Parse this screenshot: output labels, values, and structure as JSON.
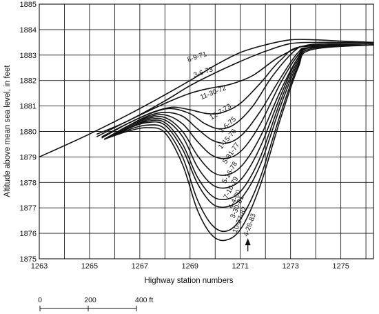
{
  "chart_data": {
    "type": "line",
    "title": "",
    "xlabel": "Highway station numbers",
    "ylabel": "Altitude above mean sea level, in feet",
    "xlim": [
      1263,
      1276.3
    ],
    "ylim": [
      1875,
      1885
    ],
    "x_ticks": [
      1263,
      1265,
      1267,
      1269,
      1271,
      1273,
      1275
    ],
    "y_ticks": [
      1875,
      1876,
      1877,
      1878,
      1879,
      1880,
      1881,
      1882,
      1883,
      1884,
      1885
    ],
    "x_gridlines": [
      1264,
      1265,
      1266,
      1267,
      1268,
      1269,
      1270,
      1271,
      1272,
      1273,
      1274,
      1275,
      1276
    ],
    "y_gridlines": [
      1876,
      1877,
      1878,
      1879,
      1880,
      1881,
      1882,
      1883,
      1884
    ],
    "grid": true,
    "annotation": {
      "symbol": "↑",
      "x": 1271.3,
      "y": 1875.4
    },
    "scale_bar": {
      "labels": [
        "0",
        "200",
        "400 ft"
      ]
    },
    "series": [
      {
        "name": "8-9-71",
        "x": [
          1263.0,
          1265.0,
          1267.0,
          1269.0,
          1270.0,
          1271.0,
          1272.0,
          1273.0,
          1274.0,
          1275.0,
          1276.3
        ],
        "y": [
          1879.0,
          1879.9,
          1880.9,
          1882.0,
          1882.6,
          1883.1,
          1883.4,
          1883.6,
          1883.6,
          1883.55,
          1883.5
        ]
      },
      {
        "name": "3-6-73",
        "x": [
          1265.3,
          1266.5,
          1268.0,
          1269.0,
          1270.0,
          1271.0,
          1272.0,
          1273.0,
          1274.0,
          1275.0,
          1276.3
        ],
        "y": [
          1879.9,
          1880.4,
          1881.2,
          1881.8,
          1882.3,
          1882.75,
          1883.15,
          1883.45,
          1883.5,
          1883.5,
          1883.5
        ]
      },
      {
        "name": "11-30-72",
        "x": [
          1265.3,
          1266.5,
          1268.0,
          1269.0,
          1269.8,
          1270.6,
          1271.5,
          1272.5,
          1273.5,
          1274.5,
          1276.3
        ],
        "y": [
          1879.8,
          1880.4,
          1881.1,
          1881.5,
          1881.7,
          1881.85,
          1882.2,
          1882.9,
          1883.35,
          1883.45,
          1883.45
        ]
      },
      {
        "name": "12-7-73",
        "x": [
          1265.5,
          1266.5,
          1267.5,
          1268.3,
          1269.0,
          1269.7,
          1270.3,
          1271.0,
          1271.8,
          1272.6,
          1273.5,
          1276.3
        ],
        "y": [
          1879.8,
          1880.3,
          1880.75,
          1880.95,
          1880.85,
          1880.7,
          1880.75,
          1881.1,
          1881.9,
          1882.8,
          1883.35,
          1883.4
        ]
      },
      {
        "name": "1-6-75",
        "x": [
          1265.5,
          1266.5,
          1267.4,
          1268.2,
          1269.0,
          1269.6,
          1270.2,
          1270.8,
          1271.5,
          1272.3,
          1273.2,
          1273.8,
          1276.3
        ],
        "y": [
          1879.75,
          1880.3,
          1880.7,
          1880.9,
          1880.7,
          1880.3,
          1880.1,
          1880.3,
          1881.0,
          1882.2,
          1883.2,
          1883.35,
          1883.4
        ]
      },
      {
        "name": "1-15-76",
        "x": [
          1265.6,
          1266.5,
          1267.3,
          1268.0,
          1268.7,
          1269.3,
          1269.9,
          1270.5,
          1271.1,
          1271.8,
          1272.6,
          1273.3,
          1273.8,
          1276.3
        ],
        "y": [
          1879.7,
          1880.2,
          1880.6,
          1880.75,
          1880.6,
          1880.1,
          1879.65,
          1879.55,
          1879.9,
          1880.8,
          1882.1,
          1883.1,
          1883.3,
          1883.4
        ]
      },
      {
        "name": "5-31-77",
        "x": [
          1265.6,
          1266.5,
          1267.3,
          1268.0,
          1268.7,
          1269.3,
          1269.9,
          1270.5,
          1271.1,
          1271.8,
          1272.6,
          1273.3,
          1273.8,
          1276.3
        ],
        "y": [
          1879.7,
          1880.2,
          1880.55,
          1880.65,
          1880.3,
          1879.6,
          1879.05,
          1878.95,
          1879.3,
          1880.3,
          1881.9,
          1883.0,
          1883.3,
          1883.4
        ]
      },
      {
        "name": "5-16-78",
        "x": [
          1265.6,
          1266.5,
          1267.3,
          1268.0,
          1268.7,
          1269.3,
          1269.9,
          1270.5,
          1271.1,
          1271.8,
          1272.6,
          1273.3,
          1273.8,
          1276.3
        ],
        "y": [
          1879.7,
          1880.15,
          1880.5,
          1880.55,
          1880.0,
          1879.05,
          1878.4,
          1878.3,
          1878.7,
          1879.8,
          1881.6,
          1882.9,
          1883.3,
          1883.4
        ]
      },
      {
        "name": "7-10-79",
        "x": [
          1265.6,
          1266.5,
          1267.3,
          1268.0,
          1268.7,
          1269.3,
          1269.9,
          1270.5,
          1271.1,
          1271.8,
          1272.6,
          1273.3,
          1273.8,
          1276.3
        ],
        "y": [
          1879.7,
          1880.1,
          1880.45,
          1880.45,
          1879.8,
          1878.6,
          1877.9,
          1877.8,
          1878.2,
          1879.4,
          1881.4,
          1882.9,
          1883.3,
          1883.4
        ]
      },
      {
        "name": "4-4-80",
        "x": [
          1265.6,
          1266.5,
          1267.3,
          1268.0,
          1268.7,
          1269.3,
          1269.9,
          1270.5,
          1271.1,
          1271.8,
          1272.6,
          1273.3,
          1273.8,
          1276.3
        ],
        "y": [
          1879.7,
          1880.1,
          1880.4,
          1880.35,
          1879.5,
          1878.2,
          1877.45,
          1877.35,
          1877.75,
          1879.0,
          1881.2,
          1882.8,
          1883.3,
          1883.4
        ]
      },
      {
        "name": "3-30-81",
        "x": [
          1265.6,
          1266.5,
          1267.3,
          1268.0,
          1268.7,
          1269.3,
          1269.9,
          1270.5,
          1271.1,
          1271.8,
          1272.6,
          1273.3,
          1273.8,
          1276.3
        ],
        "y": [
          1879.7,
          1880.1,
          1880.35,
          1880.25,
          1879.3,
          1877.95,
          1877.15,
          1877.05,
          1877.45,
          1878.7,
          1881.0,
          1882.7,
          1883.3,
          1883.4
        ]
      },
      {
        "name": "10-27-82",
        "x": [
          1265.6,
          1266.5,
          1267.3,
          1268.0,
          1268.7,
          1269.3,
          1269.9,
          1270.5,
          1271.1,
          1271.8,
          1272.6,
          1273.3,
          1273.8,
          1276.3
        ],
        "y": [
          1879.7,
          1880.05,
          1880.25,
          1880.1,
          1879.0,
          1877.3,
          1876.3,
          1876.1,
          1876.7,
          1878.2,
          1880.7,
          1882.6,
          1883.25,
          1883.4
        ]
      },
      {
        "name": "4-26-83",
        "x": [
          1265.6,
          1266.5,
          1267.3,
          1268.0,
          1268.7,
          1269.3,
          1269.9,
          1270.5,
          1271.1,
          1271.8,
          1272.6,
          1273.3,
          1273.8,
          1276.3
        ],
        "y": [
          1879.7,
          1880.0,
          1880.15,
          1879.95,
          1878.7,
          1876.9,
          1875.9,
          1875.75,
          1876.3,
          1877.9,
          1880.5,
          1882.5,
          1883.2,
          1883.4
        ]
      }
    ],
    "curve_labels": [
      {
        "text": "8-9-71",
        "x": 1269.3,
        "y": 1882.85,
        "angle": -18
      },
      {
        "text": "3-6-73",
        "x": 1269.55,
        "y": 1882.25,
        "angle": -18
      },
      {
        "text": "11-30-72",
        "x": 1269.95,
        "y": 1881.45,
        "angle": -22
      },
      {
        "text": "12-7-73",
        "x": 1270.25,
        "y": 1880.7,
        "angle": -32
      },
      {
        "text": "1-6-75",
        "x": 1270.55,
        "y": 1880.2,
        "angle": -42
      },
      {
        "text": "1-15-76",
        "x": 1270.55,
        "y": 1879.65,
        "angle": -50
      },
      {
        "text": "5-31-77",
        "x": 1270.7,
        "y": 1879.1,
        "angle": -55
      },
      {
        "text": "5-16-78",
        "x": 1270.65,
        "y": 1878.35,
        "angle": -60
      },
      {
        "text": "7-10-79",
        "x": 1270.7,
        "y": 1877.75,
        "angle": -62
      },
      {
        "text": "4-4-80",
        "x": 1270.85,
        "y": 1877.3,
        "angle": -64
      },
      {
        "text": "3-30-81",
        "x": 1270.95,
        "y": 1877.0,
        "angle": -66
      },
      {
        "text": "10-27-82",
        "x": 1271.05,
        "y": 1876.5,
        "angle": -68
      },
      {
        "text": "4-26-83",
        "x": 1271.45,
        "y": 1876.3,
        "angle": -70
      }
    ]
  }
}
